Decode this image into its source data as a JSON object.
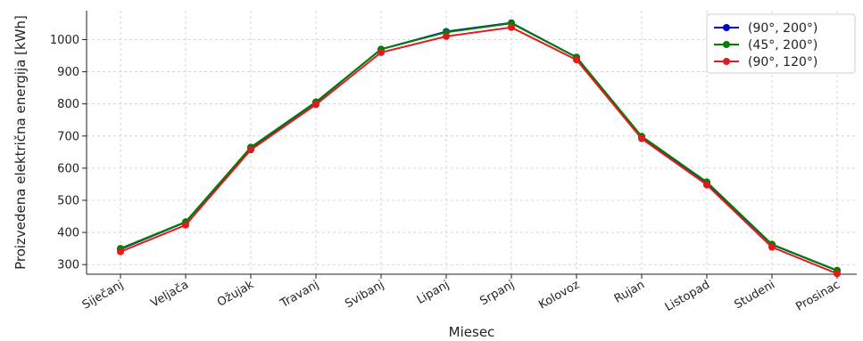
{
  "chart_data": {
    "type": "line",
    "title": "",
    "xlabel": "Miesec",
    "ylabel": "Proizvedena električna energija [kWh]",
    "categories": [
      "Siječanj",
      "Veljača",
      "Ožujak",
      "Travanj",
      "Svibanj",
      "Lipanj",
      "Srpanj",
      "Kolovoz",
      "Rujan",
      "Listopad",
      "Studeni",
      "Prosinac"
    ],
    "ylim": [
      270,
      1090
    ],
    "yticks": [
      300,
      400,
      500,
      600,
      700,
      800,
      900,
      1000
    ],
    "grid": true,
    "legend_position": "top-right",
    "series": [
      {
        "name": "(90°, 200°)",
        "color": "#0000cc",
        "values": [
          348,
          432,
          663,
          805,
          970,
          1025,
          1052,
          945,
          698,
          555,
          362,
          281
        ]
      },
      {
        "name": "(45°, 200°)",
        "color": "#008000",
        "values": [
          350,
          433,
          665,
          806,
          970,
          1023,
          1051,
          945,
          699,
          557,
          363,
          282
        ]
      },
      {
        "name": "(90°, 120°)",
        "color": "#e31a1c",
        "values": [
          340,
          423,
          657,
          798,
          960,
          1010,
          1038,
          937,
          692,
          548,
          354,
          272
        ]
      }
    ]
  }
}
